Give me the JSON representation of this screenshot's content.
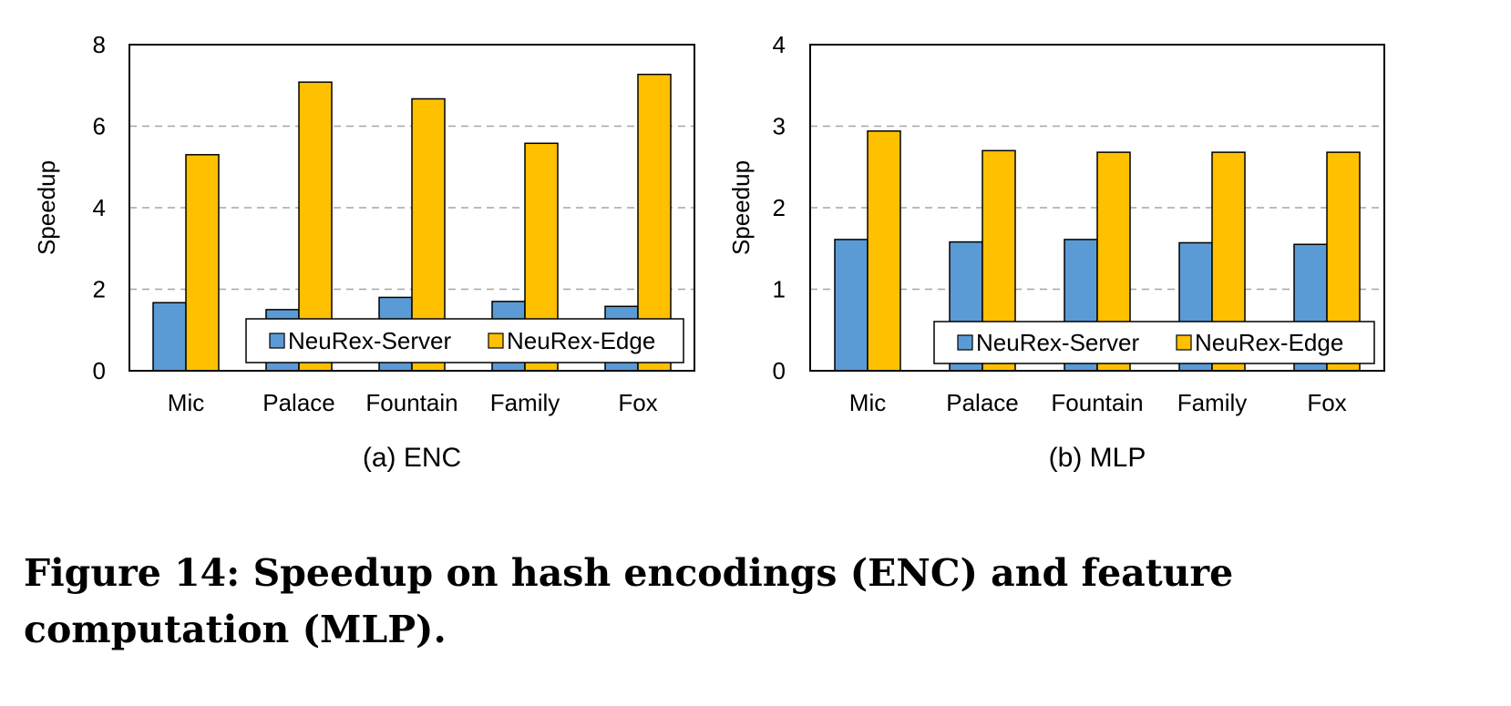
{
  "chart_data": [
    {
      "type": "bar",
      "title": "(a) ENC",
      "ylabel": "Speedup",
      "xlabel": "",
      "ylim": [
        0,
        8
      ],
      "yticks": [
        0,
        2,
        4,
        6,
        8
      ],
      "grid": "horizontal dashed",
      "legend_placement": "bottom-right",
      "categories": [
        "Mic",
        "Palace",
        "Fountain",
        "Family",
        "Fox"
      ],
      "series": [
        {
          "name": "NeuRex-Server",
          "color": "#5B9BD5",
          "values": [
            1.67,
            1.5,
            1.8,
            1.7,
            1.58
          ]
        },
        {
          "name": "NeuRex-Edge",
          "color": "#FFC000",
          "values": [
            5.3,
            7.08,
            6.67,
            5.58,
            7.27
          ]
        }
      ]
    },
    {
      "type": "bar",
      "title": "(b) MLP",
      "ylabel": "Speedup",
      "xlabel": "",
      "ylim": [
        0,
        4
      ],
      "yticks": [
        0,
        1,
        2,
        3,
        4
      ],
      "grid": "horizontal dashed",
      "legend_placement": "bottom-right",
      "categories": [
        "Mic",
        "Palace",
        "Fountain",
        "Family",
        "Fox"
      ],
      "series": [
        {
          "name": "NeuRex-Server",
          "color": "#5B9BD5",
          "values": [
            1.61,
            1.58,
            1.61,
            1.57,
            1.55
          ]
        },
        {
          "name": "NeuRex-Edge",
          "color": "#FFC000",
          "values": [
            2.94,
            2.7,
            2.68,
            2.68,
            2.68
          ]
        }
      ]
    }
  ],
  "caption": "Figure 14: Speedup on hash encodings (ENC) and feature computation (MLP)."
}
